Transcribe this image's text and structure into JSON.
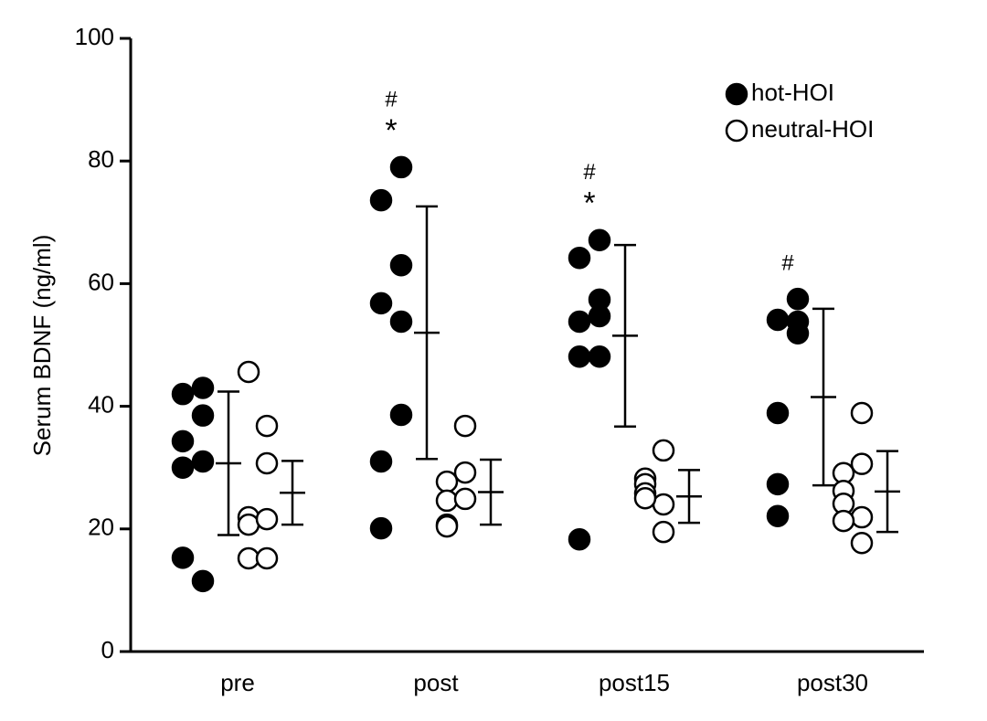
{
  "chart_data": {
    "type": "scatter",
    "ylabel": "Serum BDNF (ng/ml)",
    "categories": [
      "pre",
      "post",
      "post15",
      "post30"
    ],
    "ylim": [
      0,
      100
    ],
    "yticks": [
      0,
      20,
      40,
      60,
      80,
      100
    ],
    "legend": "upper right",
    "series": [
      {
        "name": "hot-HOI",
        "color": "#000000",
        "filled": true,
        "values": [
          [
            42,
            43,
            34.3,
            38.5,
            30,
            31,
            15.3,
            11.5
          ],
          [
            73.6,
            79,
            56.8,
            63,
            31,
            53.8,
            20.1,
            38.6
          ],
          [
            64.2,
            67.1,
            53.8,
            57.4,
            48.1,
            54.7,
            18.3,
            48.1
          ],
          [
            54.1,
            57.5,
            27.3,
            53.8,
            22.1,
            51.9,
            38.9
          ]
        ],
        "mean": [
          30.7,
          52.0,
          51.5,
          41.5
        ],
        "sd": [
          11.7,
          20.6,
          14.8,
          14.4
        ],
        "annotations": [
          null,
          [
            "#",
            "*"
          ],
          [
            "#",
            "*"
          ],
          [
            "#"
          ]
        ]
      },
      {
        "name": "neutral-HOI",
        "color": "#000000",
        "filled": false,
        "values": [
          [
            45.6,
            36.8,
            21.9,
            30.7,
            20.7,
            21.6,
            15.2,
            15.2
          ],
          [
            27.7,
            36.8,
            24.6,
            29.2,
            20.7,
            24.9,
            20.4
          ],
          [
            28.2,
            32.8,
            27.3,
            24.0,
            25.8,
            19.5,
            25.0
          ],
          [
            29.1,
            38.9,
            26.2,
            30.6,
            24.1,
            21.9,
            21.3,
            17.7
          ]
        ],
        "mean": [
          25.9,
          26.0,
          25.3,
          26.1
        ],
        "sd": [
          5.2,
          5.3,
          4.3,
          6.6
        ]
      }
    ]
  }
}
